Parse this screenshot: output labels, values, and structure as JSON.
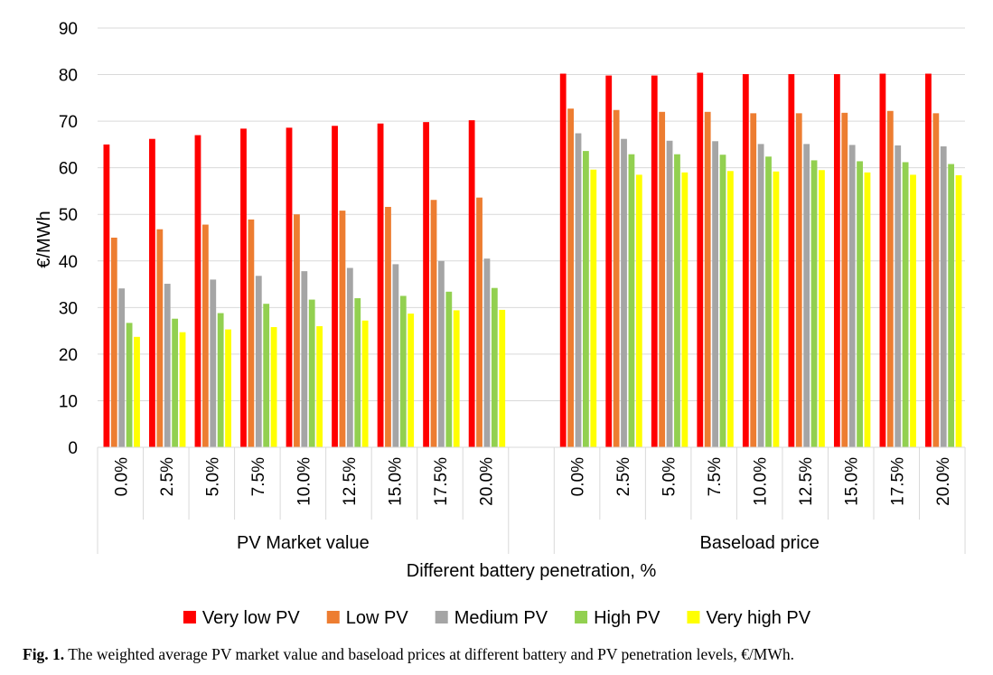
{
  "chart_data": {
    "type": "bar",
    "title": "",
    "ylabel": "€/MWh",
    "xlabel": "Different battery penetration, %",
    "ylim": [
      0,
      90
    ],
    "yticks": [
      "0",
      "10",
      "20",
      "30",
      "40",
      "50",
      "60",
      "70",
      "80",
      "90"
    ],
    "grid": true,
    "legend_position": "bottom",
    "groups": [
      {
        "label": "PV Market value",
        "categories": [
          "0.0%",
          "2.5%",
          "5.0%",
          "7.5%",
          "10.0%",
          "12.5%",
          "15.0%",
          "17.5%",
          "20.0%"
        ]
      },
      {
        "label": "Baseload price",
        "categories": [
          "0.0%",
          "2.5%",
          "5.0%",
          "7.5%",
          "10.0%",
          "12.5%",
          "15.0%",
          "17.5%",
          "20.0%"
        ]
      }
    ],
    "series": [
      {
        "name": "Very low PV",
        "color": "#ff0000",
        "values": [
          [
            65.0,
            66.2,
            67.0,
            68.4,
            68.6,
            69.0,
            69.5,
            69.8,
            70.2
          ],
          [
            80.2,
            79.8,
            79.8,
            80.4,
            80.1,
            80.1,
            80.1,
            80.2,
            80.2
          ]
        ]
      },
      {
        "name": "Low PV",
        "color": "#ed7d31",
        "values": [
          [
            45.0,
            46.8,
            47.8,
            48.9,
            50.0,
            50.8,
            51.6,
            53.1,
            53.6
          ],
          [
            72.7,
            72.4,
            72.0,
            72.0,
            71.7,
            71.7,
            71.8,
            72.2,
            71.7
          ]
        ]
      },
      {
        "name": "Medium PV",
        "color": "#a5a5a5",
        "values": [
          [
            34.1,
            35.1,
            36.0,
            36.8,
            37.8,
            38.5,
            39.3,
            40.0,
            40.5
          ],
          [
            67.4,
            66.2,
            65.8,
            65.7,
            65.1,
            65.1,
            64.9,
            64.8,
            64.6
          ]
        ]
      },
      {
        "name": "High PV",
        "color": "#92d050",
        "values": [
          [
            26.7,
            27.6,
            28.8,
            30.8,
            31.7,
            32.0,
            32.5,
            33.4,
            34.2
          ],
          [
            63.6,
            62.9,
            62.9,
            62.8,
            62.4,
            61.6,
            61.4,
            61.2,
            60.8
          ]
        ]
      },
      {
        "name": "Very high PV",
        "color": "#ffff00",
        "values": [
          [
            23.7,
            24.7,
            25.3,
            25.8,
            26.0,
            27.2,
            28.7,
            29.4,
            29.5
          ],
          [
            59.6,
            58.5,
            59.0,
            59.3,
            59.2,
            59.5,
            59.0,
            58.5,
            58.4
          ]
        ]
      }
    ]
  },
  "caption": {
    "label": "Fig. 1.",
    "text": "The weighted average PV market value and baseload prices at different battery and PV penetration levels, €/MWh."
  }
}
